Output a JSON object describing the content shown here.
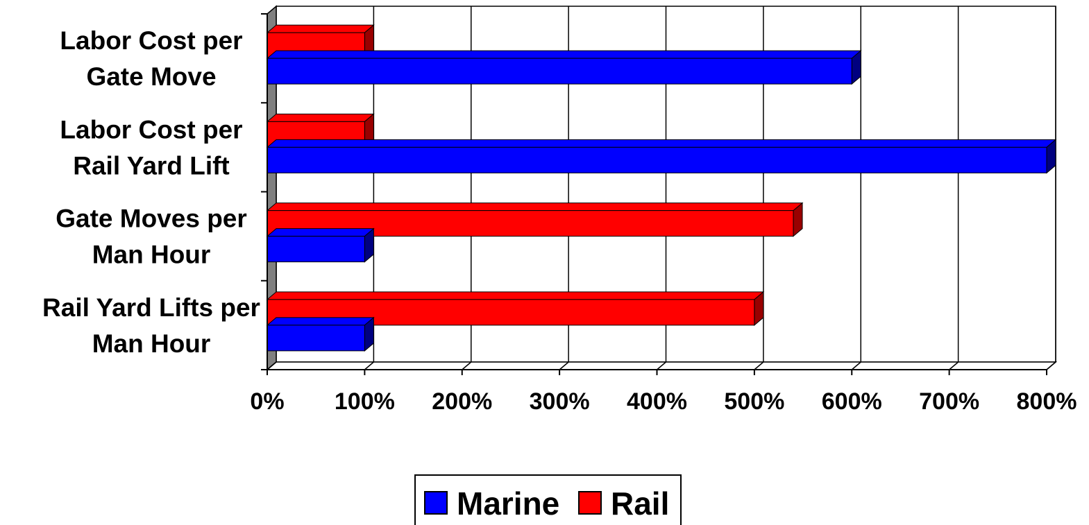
{
  "chart_data": {
    "type": "bar",
    "orientation": "horizontal",
    "style": "3d",
    "categories": [
      [
        "Labor Cost per",
        "Gate Move"
      ],
      [
        "Labor Cost per",
        "Rail Yard Lift"
      ],
      [
        "Gate Moves per",
        "Man Hour"
      ],
      [
        "Rail Yard Lifts per",
        "Man Hour"
      ]
    ],
    "series": [
      {
        "name": "Marine",
        "color": "#0000FF",
        "side_color": "#000080",
        "values": [
          600,
          800,
          100,
          100
        ]
      },
      {
        "name": "Rail",
        "color": "#FF0000",
        "side_color": "#990000",
        "values": [
          100,
          100,
          540,
          500
        ]
      }
    ],
    "xlim": [
      0,
      800
    ],
    "xticks": [
      0,
      100,
      200,
      300,
      400,
      500,
      600,
      700,
      800
    ],
    "tick_suffix": "%",
    "xlabel": "",
    "ylabel": "",
    "title": "",
    "grid": true,
    "legend": "bottom-center",
    "wall_color": "#808080"
  }
}
